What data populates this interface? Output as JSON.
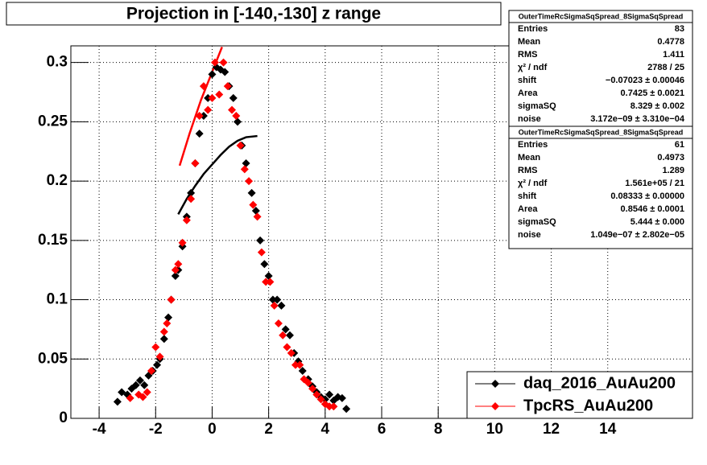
{
  "chart_data": {
    "type": "scatter",
    "title": "Projection in [-140,-130] z range",
    "xlim": [
      -5,
      17
    ],
    "ylim": [
      0,
      0.314
    ],
    "xticks": [
      -4,
      -2,
      0,
      2,
      4,
      6,
      8,
      10,
      12,
      14
    ],
    "yticks": [
      0,
      0.05,
      0.1,
      0.15,
      0.2,
      0.25,
      0.3
    ],
    "grid": true,
    "legend": "bottom-right",
    "series": [
      {
        "name": "daq_2016_AuAu200",
        "color": "#000000",
        "x": [
          -3.35,
          -3.2,
          -3.0,
          -2.85,
          -2.7,
          -2.55,
          -2.4,
          -2.25,
          -2.1,
          -1.95,
          -1.85,
          -1.7,
          -1.55,
          -1.45,
          -1.3,
          -1.2,
          -1.05,
          -0.9,
          -0.75,
          -0.6,
          -0.45,
          -0.3,
          -0.15,
          0,
          0.15,
          0.3,
          0.45,
          0.6,
          0.75,
          0.9,
          1.05,
          1.2,
          1.4,
          1.55,
          1.7,
          1.85,
          2.0,
          2.15,
          2.3,
          2.45,
          2.6,
          2.75,
          2.9,
          3.05,
          3.2,
          3.4,
          3.55,
          3.7,
          3.85,
          4.0,
          4.15,
          4.3,
          4.45,
          4.6,
          4.75
        ],
        "values": [
          0.014,
          0.022,
          0.02,
          0.025,
          0.028,
          0.032,
          0.028,
          0.036,
          0.04,
          0.045,
          0.05,
          0.067,
          0.085,
          0.1,
          0.12,
          0.125,
          0.145,
          0.17,
          0.19,
          0.215,
          0.24,
          0.255,
          0.27,
          0.29,
          0.296,
          0.294,
          0.292,
          0.28,
          0.27,
          0.25,
          0.23,
          0.215,
          0.19,
          0.175,
          0.15,
          0.13,
          0.12,
          0.1,
          0.1,
          0.095,
          0.075,
          0.07,
          0.055,
          0.048,
          0.04,
          0.033,
          0.027,
          0.022,
          0.018,
          0.016,
          0.02,
          0.015,
          0.018,
          0.017,
          0.008
        ]
      },
      {
        "name": "TpcRS_AuAu200",
        "color": "#ff0000",
        "x": [
          -2.9,
          -2.6,
          -2.45,
          -2.3,
          -2.15,
          -2.0,
          -1.85,
          -1.7,
          -1.6,
          -1.45,
          -1.3,
          -1.2,
          -1.05,
          -0.9,
          -0.75,
          -0.6,
          -0.45,
          -0.3,
          -0.15,
          0,
          0.1,
          0.25,
          0.4,
          0.55,
          0.7,
          0.85,
          1.0,
          1.15,
          1.3,
          1.45,
          1.6,
          1.75,
          1.9,
          2.05,
          2.2,
          2.35,
          2.5,
          2.65,
          2.8,
          2.95,
          3.1,
          3.25,
          3.4,
          3.55,
          3.7,
          3.85,
          4.0,
          4.15,
          4.3
        ],
        "values": [
          0.017,
          0.02,
          0.018,
          0.022,
          0.04,
          0.06,
          0.052,
          0.073,
          0.08,
          0.1,
          0.125,
          0.13,
          0.148,
          0.167,
          0.185,
          0.215,
          0.255,
          0.28,
          0.26,
          0.27,
          0.3,
          0.273,
          0.3,
          0.28,
          0.26,
          0.255,
          0.23,
          0.21,
          0.2,
          0.18,
          0.17,
          0.14,
          0.115,
          0.115,
          0.095,
          0.08,
          0.07,
          0.06,
          0.055,
          0.045,
          0.045,
          0.033,
          0.03,
          0.025,
          0.02,
          0.016,
          0.012,
          0.01,
          0.01
        ]
      }
    ],
    "fits": [
      {
        "color": "#000000",
        "x": [
          -1.2,
          -0.9,
          -0.6,
          -0.3,
          0,
          0.3,
          0.6,
          0.9,
          1.2,
          1.6
        ],
        "values": [
          0.172,
          0.185,
          0.196,
          0.206,
          0.214,
          0.222,
          0.229,
          0.234,
          0.237,
          0.238
        ]
      },
      {
        "color": "#ff0000",
        "x": [
          -1.15,
          -0.8,
          -0.4,
          0,
          0.35
        ],
        "values": [
          0.213,
          0.24,
          0.268,
          0.292,
          0.313
        ]
      }
    ],
    "stats": [
      {
        "title": "OuterTimeRcSigmaSqSpread_8SigmaSqSpread",
        "rows": [
          [
            "Entries",
            "83"
          ],
          [
            "Mean",
            "0.4778"
          ],
          [
            "RMS",
            "1.411"
          ],
          [
            "χ² / ndf",
            "2788 / 25"
          ],
          [
            "shift",
            "−0.07023 ± 0.00046"
          ],
          [
            "Area",
            "0.7425 ± 0.0021"
          ],
          [
            "sigmaSQ",
            "8.329 ± 0.002"
          ],
          [
            "noise",
            "3.172e−09 ± 3.310e−04"
          ]
        ]
      },
      {
        "title": "OuterTimeRcSigmaSqSpread_8SigmaSqSpread",
        "rows": [
          [
            "Entries",
            "61"
          ],
          [
            "Mean",
            "0.4973"
          ],
          [
            "RMS",
            "1.289"
          ],
          [
            "χ² / ndf",
            "1.561e+05 / 21"
          ],
          [
            "shift",
            "0.08333 ± 0.00000"
          ],
          [
            "Area",
            "0.8546 ± 0.0001"
          ],
          [
            "sigmaSQ",
            "5.444 ± 0.000"
          ],
          [
            "noise",
            "1.049e−07 ± 2.802e−05"
          ]
        ]
      }
    ]
  }
}
